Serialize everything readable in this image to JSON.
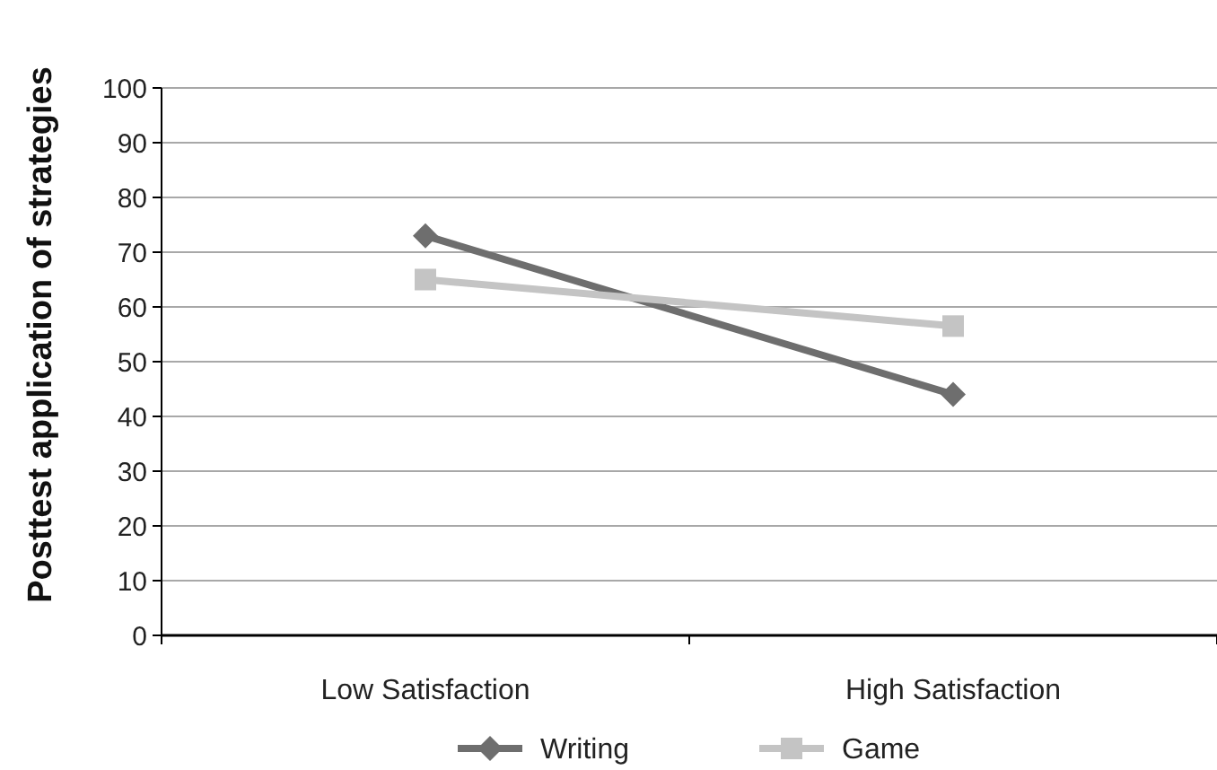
{
  "chart_data": {
    "type": "line",
    "ylabel": "Posttest application of strategies",
    "categories": [
      "Low Satisfaction",
      "High Satisfaction"
    ],
    "series": [
      {
        "name": "Writing",
        "color": "#6e6e6e",
        "values": [
          73,
          44
        ],
        "marker": "diamond"
      },
      {
        "name": "Game",
        "color": "#c4c4c4",
        "values": [
          65,
          56.5
        ],
        "marker": "square"
      }
    ],
    "ylim": [
      0,
      100
    ],
    "yticks": [
      0,
      10,
      20,
      30,
      40,
      50,
      60,
      70,
      80,
      90,
      100
    ],
    "grid": "y",
    "legend": "bottom",
    "line_style": "solid"
  }
}
